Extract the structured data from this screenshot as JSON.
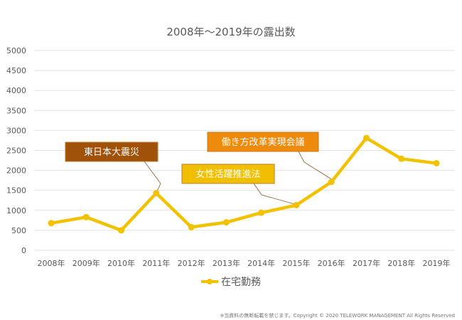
{
  "chart_data": {
    "type": "line",
    "title": "2008年～2019年の露出数",
    "xlabel": "",
    "ylabel": "",
    "categories": [
      "2008年",
      "2009年",
      "2010年",
      "2011年",
      "2012年",
      "2013年",
      "2014年",
      "2015年",
      "2016年",
      "2017年",
      "2018年",
      "2019年"
    ],
    "series": [
      {
        "name": "在宅勤務",
        "color": "#f2c200",
        "values": [
          680,
          830,
          500,
          1430,
          580,
          700,
          940,
          1130,
          1710,
          2810,
          2290,
          2180
        ]
      }
    ],
    "ylim": [
      0,
      5000
    ],
    "yticks": [
      "0",
      "500",
      "1000",
      "1500",
      "2000",
      "2500",
      "3000",
      "3500",
      "4000",
      "4500",
      "5000"
    ],
    "grid": true,
    "legend": "bottom",
    "annotations": [
      {
        "text": "東日本大震災",
        "category_index": 3,
        "color": "#a0520a"
      },
      {
        "text": "女性活躍推進法",
        "category_index": 7,
        "color": "#f0c000"
      },
      {
        "text": "働き方改革実現会議",
        "category_index": 8,
        "color": "#ee8a0c"
      }
    ]
  },
  "footer": "※当資料の無断転載を禁じます。Copyright © 2020  TELEWORK MANAGEMENT All Rights Reserved"
}
